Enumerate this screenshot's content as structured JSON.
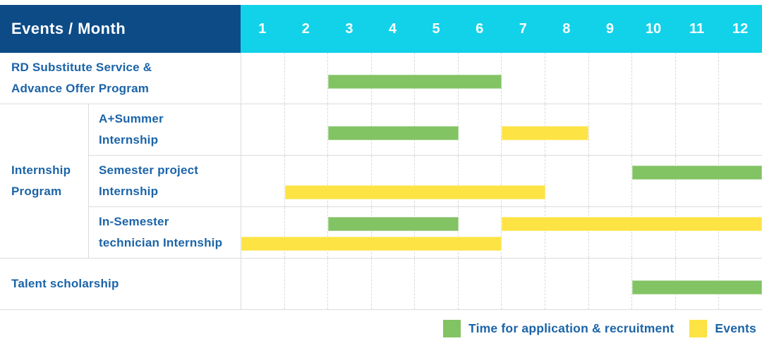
{
  "header": {
    "title": "Events / Month",
    "months": [
      "1",
      "2",
      "3",
      "4",
      "5",
      "6",
      "7",
      "8",
      "9",
      "10",
      "11",
      "12"
    ]
  },
  "rows": [
    {
      "label": "RD Substitute Service &\nAdvance Offer Program",
      "full_width": true,
      "lines": 1,
      "bars": [
        {
          "kind": "application",
          "start_month": 3,
          "end_month": 6,
          "line": 1
        }
      ]
    },
    {
      "label": "A+Summer\nInternship",
      "group": "Internship\nProgram",
      "group_span": 3,
      "full_width": false,
      "lines": 1,
      "bars": [
        {
          "kind": "application",
          "start_month": 3,
          "end_month": 5,
          "line": 1
        },
        {
          "kind": "event",
          "start_month": 7,
          "end_month": 8,
          "line": 1
        }
      ]
    },
    {
      "label": "Semester project\nInternship",
      "full_width": false,
      "lines": 2,
      "bars": [
        {
          "kind": "application",
          "start_month": 10,
          "end_month": 12,
          "line": 1
        },
        {
          "kind": "event",
          "start_month": 2,
          "end_month": 7,
          "line": 2
        }
      ]
    },
    {
      "label": "In-Semester\ntechnician Internship",
      "full_width": false,
      "lines": 2,
      "bars": [
        {
          "kind": "application",
          "start_month": 3,
          "end_month": 5,
          "line": 1
        },
        {
          "kind": "event",
          "start_month": 7,
          "end_month": 12,
          "line": 1
        },
        {
          "kind": "event",
          "start_month": 1,
          "end_month": 6,
          "line": 2
        }
      ]
    },
    {
      "label": "Talent scholarship",
      "full_width": true,
      "lines": 1,
      "bars": [
        {
          "kind": "application",
          "start_month": 10,
          "end_month": 12,
          "line": 1
        }
      ]
    }
  ],
  "legend": {
    "items": [
      {
        "kind": "application",
        "label": "Time for application & recruitment"
      },
      {
        "kind": "event",
        "label": "Events"
      }
    ]
  },
  "colors": {
    "header_bg": "#0d4b87",
    "months_bg": "#11d2e9",
    "application": "#82c364",
    "event": "#fde343",
    "label_text": "#1b64a8",
    "grid": "#dcdcdc"
  },
  "chart_data": {
    "type": "bar",
    "subtype": "gantt-timeline",
    "title": "Events / Month",
    "xlabel": "Month",
    "x_ticks": [
      1,
      2,
      3,
      4,
      5,
      6,
      7,
      8,
      9,
      10,
      11,
      12
    ],
    "x_range": [
      1,
      12
    ],
    "grid": true,
    "legend_position": "bottom-right",
    "series_legend": [
      {
        "name": "Time for application & recruitment",
        "color": "#82c364"
      },
      {
        "name": "Events",
        "color": "#fde343"
      }
    ],
    "rows": [
      {
        "event": "RD Substitute Service & Advance Offer Program",
        "group": null,
        "application_recruitment_months": [
          [
            3,
            6
          ]
        ],
        "event_months": []
      },
      {
        "event": "A+Summer Internship",
        "group": "Internship Program",
        "application_recruitment_months": [
          [
            3,
            5
          ]
        ],
        "event_months": [
          [
            7,
            8
          ]
        ]
      },
      {
        "event": "Semester project Internship",
        "group": "Internship Program",
        "application_recruitment_months": [
          [
            10,
            12
          ]
        ],
        "event_months": [
          [
            2,
            7
          ]
        ]
      },
      {
        "event": "In-Semester technician Internship",
        "group": "Internship Program",
        "application_recruitment_months": [
          [
            3,
            5
          ]
        ],
        "event_months": [
          [
            7,
            12
          ],
          [
            1,
            6
          ]
        ]
      },
      {
        "event": "Talent scholarship",
        "group": null,
        "application_recruitment_months": [
          [
            10,
            12
          ]
        ],
        "event_months": []
      }
    ]
  }
}
